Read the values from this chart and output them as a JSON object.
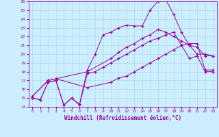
{
  "title": "",
  "xlabel": "Windchill (Refroidissement éolien,°C)",
  "ylabel": "",
  "bg_color": "#cceeff",
  "line_color": "#990099",
  "xlim": [
    -0.5,
    23.5
  ],
  "ylim": [
    14,
    26
  ],
  "yticks": [
    14,
    15,
    16,
    17,
    18,
    19,
    20,
    21,
    22,
    23,
    24,
    25,
    26
  ],
  "xticks": [
    0,
    1,
    2,
    3,
    4,
    5,
    6,
    7,
    8,
    9,
    10,
    11,
    12,
    13,
    14,
    15,
    16,
    17,
    18,
    19,
    20,
    21,
    22,
    23
  ],
  "line1_x": [
    0,
    1,
    2,
    3,
    4,
    5,
    6,
    7,
    8,
    9,
    10,
    11,
    12,
    13,
    14,
    15,
    16,
    17,
    18,
    19,
    20,
    21,
    22,
    23
  ],
  "line1_y": [
    15.0,
    14.8,
    16.8,
    17.0,
    14.2,
    15.0,
    14.2,
    17.8,
    18.0,
    18.5,
    19.0,
    19.5,
    20.0,
    20.5,
    21.0,
    21.5,
    21.8,
    22.2,
    22.5,
    21.0,
    19.5,
    19.8,
    18.0,
    18.0
  ],
  "line2_x": [
    0,
    1,
    2,
    3,
    4,
    5,
    6,
    7,
    8,
    9,
    10,
    11,
    12,
    13,
    14,
    15,
    16,
    17,
    18,
    19,
    20,
    21,
    22,
    23
  ],
  "line2_y": [
    15.0,
    14.8,
    16.8,
    17.0,
    14.2,
    15.0,
    14.3,
    18.2,
    20.0,
    22.2,
    22.5,
    23.0,
    23.3,
    23.2,
    23.2,
    25.0,
    26.0,
    26.2,
    24.5,
    22.5,
    21.0,
    20.0,
    20.0,
    19.8
  ],
  "line3_x": [
    0,
    2,
    3,
    7,
    10,
    11,
    12,
    13,
    14,
    15,
    16,
    17,
    18,
    19,
    20,
    21,
    22,
    23
  ],
  "line3_y": [
    15.2,
    17.0,
    17.2,
    18.0,
    19.5,
    20.2,
    20.8,
    21.2,
    21.8,
    22.2,
    22.8,
    22.5,
    22.0,
    21.5,
    21.0,
    20.8,
    19.8,
    19.8
  ],
  "line4_x": [
    0,
    2,
    3,
    7,
    10,
    11,
    12,
    13,
    14,
    15,
    16,
    17,
    18,
    19,
    20,
    21,
    22,
    23
  ],
  "line4_y": [
    15.2,
    17.0,
    17.2,
    16.2,
    16.8,
    17.3,
    17.5,
    18.0,
    18.5,
    19.0,
    19.5,
    20.0,
    20.5,
    21.0,
    21.2,
    21.2,
    18.2,
    18.2
  ]
}
